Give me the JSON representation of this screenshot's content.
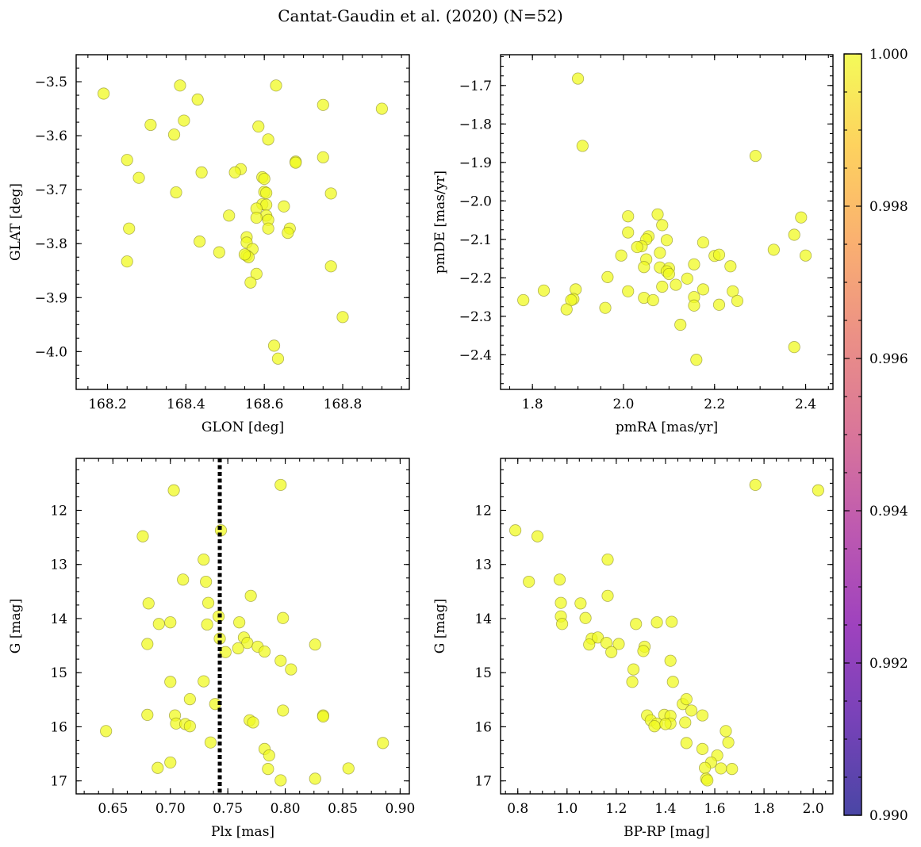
{
  "title": "Cantat-Gaudin et al. (2020) (N=52)",
  "colors": {
    "marker": "#f0f921",
    "marker_edge": "#808020",
    "vline": "#000000"
  },
  "colorbar": {
    "colormap": "plasma",
    "range": [
      0.99,
      1.0
    ],
    "tick_labels": [
      "0.990",
      "0.992",
      "0.994",
      "0.996",
      "0.998",
      "1.000"
    ]
  },
  "chart_data": [
    {
      "type": "scatter",
      "xlabel": "GLON [deg]",
      "ylabel": "GLAT [deg]",
      "xlim": [
        168.12,
        168.97
      ],
      "ylim": [
        -4.07,
        -3.45
      ],
      "x_ticks": [
        "168.2",
        "168.4",
        "168.6",
        "168.8"
      ],
      "y_ticks": [
        "−3.5",
        "−3.6",
        "−3.7",
        "−3.8",
        "−3.9",
        "−4.0"
      ],
      "points": [
        [
          168.19,
          -3.522
        ],
        [
          168.385,
          -3.507
        ],
        [
          168.63,
          -3.507
        ],
        [
          168.43,
          -3.533
        ],
        [
          168.75,
          -3.543
        ],
        [
          168.9,
          -3.55
        ],
        [
          168.31,
          -3.58
        ],
        [
          168.395,
          -3.572
        ],
        [
          168.37,
          -3.598
        ],
        [
          168.585,
          -3.583
        ],
        [
          168.61,
          -3.607
        ],
        [
          168.25,
          -3.645
        ],
        [
          168.75,
          -3.64
        ],
        [
          168.28,
          -3.678
        ],
        [
          168.44,
          -3.668
        ],
        [
          168.54,
          -3.662
        ],
        [
          168.525,
          -3.668
        ],
        [
          168.68,
          -3.648
        ],
        [
          168.68,
          -3.65
        ],
        [
          168.595,
          -3.677
        ],
        [
          168.6,
          -3.68
        ],
        [
          168.375,
          -3.705
        ],
        [
          168.6,
          -3.704
        ],
        [
          168.605,
          -3.706
        ],
        [
          168.77,
          -3.707
        ],
        [
          168.595,
          -3.727
        ],
        [
          168.605,
          -3.728
        ],
        [
          168.58,
          -3.735
        ],
        [
          168.65,
          -3.731
        ],
        [
          168.51,
          -3.748
        ],
        [
          168.605,
          -3.748
        ],
        [
          168.58,
          -3.752
        ],
        [
          168.61,
          -3.756
        ],
        [
          168.255,
          -3.772
        ],
        [
          168.61,
          -3.772
        ],
        [
          168.665,
          -3.772
        ],
        [
          168.66,
          -3.78
        ],
        [
          168.555,
          -3.788
        ],
        [
          168.555,
          -3.798
        ],
        [
          168.435,
          -3.796
        ],
        [
          168.57,
          -3.81
        ],
        [
          168.485,
          -3.816
        ],
        [
          168.555,
          -3.822
        ],
        [
          168.56,
          -3.825
        ],
        [
          168.25,
          -3.833
        ],
        [
          168.77,
          -3.842
        ],
        [
          168.58,
          -3.856
        ],
        [
          168.565,
          -3.872
        ],
        [
          168.8,
          -3.936
        ],
        [
          168.625,
          -3.989
        ],
        [
          168.635,
          -4.013
        ],
        [
          168.55,
          -3.82
        ]
      ]
    },
    {
      "type": "scatter",
      "xlabel": "pmRA [mas/yr]",
      "ylabel": "pmDE [mas/yr]",
      "xlim": [
        1.73,
        2.46
      ],
      "ylim": [
        -2.49,
        -1.62
      ],
      "x_ticks": [
        "1.8",
        "2.0",
        "2.2",
        "2.4"
      ],
      "y_ticks": [
        "−1.7",
        "−1.8",
        "−1.9",
        "−2.0",
        "−2.1",
        "−2.2",
        "−2.3",
        "−2.4"
      ],
      "points": [
        [
          1.9,
          -1.682
        ],
        [
          1.91,
          -1.857
        ],
        [
          2.29,
          -1.883
        ],
        [
          2.01,
          -2.04
        ],
        [
          2.075,
          -2.035
        ],
        [
          2.39,
          -2.043
        ],
        [
          2.085,
          -2.063
        ],
        [
          2.01,
          -2.082
        ],
        [
          2.055,
          -2.092
        ],
        [
          2.375,
          -2.088
        ],
        [
          2.05,
          -2.1
        ],
        [
          2.095,
          -2.102
        ],
        [
          2.175,
          -2.108
        ],
        [
          2.04,
          -2.118
        ],
        [
          2.03,
          -2.12
        ],
        [
          2.33,
          -2.127
        ],
        [
          2.08,
          -2.135
        ],
        [
          1.995,
          -2.142
        ],
        [
          2.2,
          -2.143
        ],
        [
          2.21,
          -2.14
        ],
        [
          2.4,
          -2.142
        ],
        [
          2.05,
          -2.152
        ],
        [
          2.155,
          -2.165
        ],
        [
          2.235,
          -2.17
        ],
        [
          2.045,
          -2.172
        ],
        [
          2.08,
          -2.173
        ],
        [
          2.1,
          -2.175
        ],
        [
          2.095,
          -2.183
        ],
        [
          1.965,
          -2.198
        ],
        [
          2.14,
          -2.202
        ],
        [
          2.115,
          -2.218
        ],
        [
          2.085,
          -2.223
        ],
        [
          2.175,
          -2.23
        ],
        [
          1.895,
          -2.23
        ],
        [
          2.01,
          -2.235
        ],
        [
          1.825,
          -2.233
        ],
        [
          2.24,
          -2.235
        ],
        [
          2.155,
          -2.25
        ],
        [
          2.045,
          -2.252
        ],
        [
          1.89,
          -2.255
        ],
        [
          1.885,
          -2.258
        ],
        [
          1.78,
          -2.258
        ],
        [
          2.065,
          -2.258
        ],
        [
          2.25,
          -2.26
        ],
        [
          2.155,
          -2.272
        ],
        [
          2.21,
          -2.27
        ],
        [
          1.96,
          -2.278
        ],
        [
          1.875,
          -2.282
        ],
        [
          2.125,
          -2.322
        ],
        [
          2.375,
          -2.38
        ],
        [
          2.16,
          -2.413
        ],
        [
          2.1,
          -2.19
        ]
      ]
    },
    {
      "type": "scatter",
      "xlabel": "Plx [mas]",
      "ylabel": "G [mag]",
      "xlim": [
        0.618,
        0.908
      ],
      "ylim": [
        17.24,
        11.04
      ],
      "y_inverted": true,
      "x_ticks": [
        "0.65",
        "0.70",
        "0.75",
        "0.80",
        "0.85",
        "0.90"
      ],
      "y_ticks": [
        "12",
        "13",
        "14",
        "15",
        "16",
        "17"
      ],
      "vline_x": 0.743,
      "points": [
        [
          0.796,
          11.53
        ],
        [
          0.703,
          11.63
        ],
        [
          0.744,
          12.37
        ],
        [
          0.676,
          12.48
        ],
        [
          0.729,
          12.91
        ],
        [
          0.711,
          13.28
        ],
        [
          0.731,
          13.32
        ],
        [
          0.77,
          13.58
        ],
        [
          0.733,
          13.71
        ],
        [
          0.681,
          13.72
        ],
        [
          0.742,
          13.96
        ],
        [
          0.798,
          13.99
        ],
        [
          0.69,
          14.1
        ],
        [
          0.7,
          14.07
        ],
        [
          0.732,
          14.11
        ],
        [
          0.76,
          14.07
        ],
        [
          0.743,
          14.37
        ],
        [
          0.764,
          14.35
        ],
        [
          0.767,
          14.45
        ],
        [
          0.776,
          14.52
        ],
        [
          0.68,
          14.47
        ],
        [
          0.826,
          14.48
        ],
        [
          0.782,
          14.61
        ],
        [
          0.759,
          14.55
        ],
        [
          0.748,
          14.62
        ],
        [
          0.796,
          14.78
        ],
        [
          0.805,
          14.94
        ],
        [
          0.7,
          15.17
        ],
        [
          0.729,
          15.16
        ],
        [
          0.717,
          15.49
        ],
        [
          0.739,
          15.58
        ],
        [
          0.798,
          15.7
        ],
        [
          0.68,
          15.78
        ],
        [
          0.704,
          15.79
        ],
        [
          0.769,
          15.88
        ],
        [
          0.833,
          15.79
        ],
        [
          0.833,
          15.81
        ],
        [
          0.705,
          15.94
        ],
        [
          0.713,
          15.95
        ],
        [
          0.772,
          15.92
        ],
        [
          0.717,
          15.99
        ],
        [
          0.644,
          16.08
        ],
        [
          0.735,
          16.29
        ],
        [
          0.885,
          16.3
        ],
        [
          0.782,
          16.41
        ],
        [
          0.786,
          16.53
        ],
        [
          0.7,
          16.66
        ],
        [
          0.689,
          16.76
        ],
        [
          0.785,
          16.78
        ],
        [
          0.855,
          16.77
        ],
        [
          0.826,
          16.96
        ],
        [
          0.796,
          16.99
        ]
      ]
    },
    {
      "type": "scatter",
      "xlabel": "BP-RP [mag]",
      "ylabel": "G [mag]",
      "xlim": [
        0.73,
        2.08
      ],
      "ylim": [
        17.24,
        11.04
      ],
      "y_inverted": true,
      "x_ticks": [
        "0.8",
        "1.0",
        "1.2",
        "1.4",
        "1.6",
        "1.8",
        "2.0"
      ],
      "y_ticks": [
        "12",
        "13",
        "14",
        "15",
        "16",
        "17"
      ],
      "points": [
        [
          1.765,
          11.53
        ],
        [
          2.02,
          11.63
        ],
        [
          0.79,
          12.37
        ],
        [
          0.88,
          12.48
        ],
        [
          1.165,
          12.91
        ],
        [
          0.97,
          13.28
        ],
        [
          0.845,
          13.32
        ],
        [
          1.165,
          13.58
        ],
        [
          0.975,
          13.71
        ],
        [
          1.055,
          13.72
        ],
        [
          0.975,
          13.96
        ],
        [
          1.075,
          13.99
        ],
        [
          0.98,
          14.1
        ],
        [
          1.365,
          14.07
        ],
        [
          1.425,
          14.06
        ],
        [
          1.28,
          14.1
        ],
        [
          1.1,
          14.37
        ],
        [
          1.125,
          14.35
        ],
        [
          1.16,
          14.45
        ],
        [
          1.09,
          14.48
        ],
        [
          1.21,
          14.47
        ],
        [
          1.315,
          14.52
        ],
        [
          1.31,
          14.6
        ],
        [
          1.18,
          14.62
        ],
        [
          1.42,
          14.78
        ],
        [
          1.27,
          14.94
        ],
        [
          1.265,
          15.17
        ],
        [
          1.43,
          15.17
        ],
        [
          1.47,
          15.58
        ],
        [
          1.485,
          15.49
        ],
        [
          1.505,
          15.7
        ],
        [
          1.395,
          15.78
        ],
        [
          1.325,
          15.79
        ],
        [
          1.42,
          15.8
        ],
        [
          1.55,
          15.79
        ],
        [
          1.34,
          15.88
        ],
        [
          1.365,
          15.94
        ],
        [
          1.42,
          15.94
        ],
        [
          1.48,
          15.92
        ],
        [
          1.355,
          15.99
        ],
        [
          1.645,
          16.08
        ],
        [
          1.485,
          16.3
        ],
        [
          1.655,
          16.29
        ],
        [
          1.55,
          16.41
        ],
        [
          1.61,
          16.53
        ],
        [
          1.585,
          16.66
        ],
        [
          1.56,
          16.76
        ],
        [
          1.67,
          16.78
        ],
        [
          1.625,
          16.77
        ],
        [
          1.565,
          16.96
        ],
        [
          1.57,
          16.99
        ],
        [
          1.4,
          15.95
        ]
      ]
    }
  ]
}
